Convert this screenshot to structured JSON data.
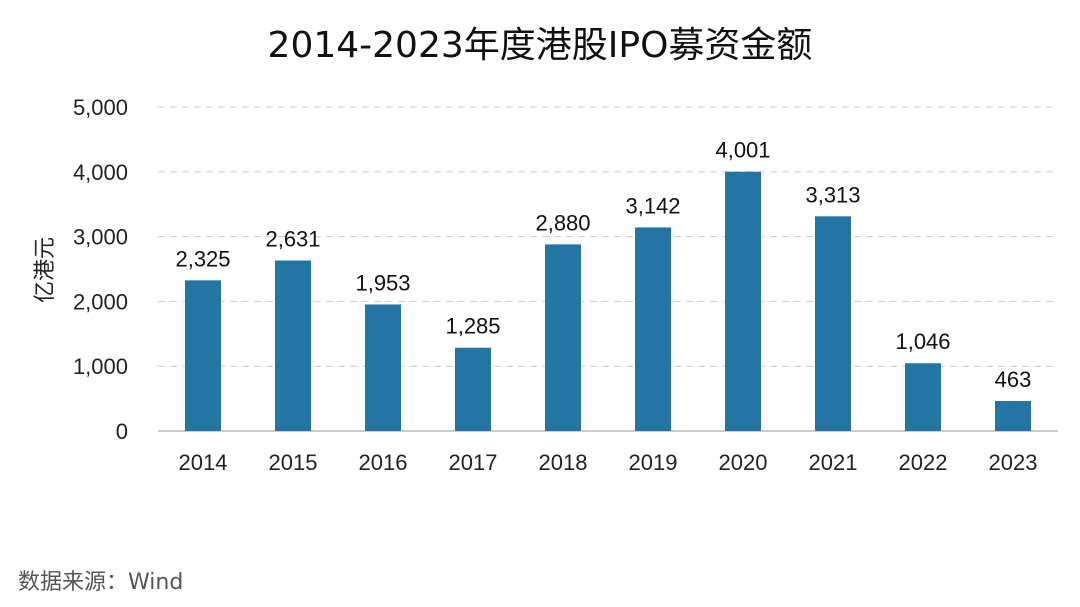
{
  "colors": {
    "bar": "#2474A4",
    "grid": "#CCCCCC",
    "axis": "#BBBBBB"
  },
  "source": "数据来源：Wind",
  "chart_data": {
    "type": "bar",
    "title": "2014-2023年度港股IPO募资金额",
    "ylabel": "亿港元",
    "xlabel": "",
    "categories": [
      "2014",
      "2015",
      "2016",
      "2017",
      "2018",
      "2019",
      "2020",
      "2021",
      "2022",
      "2023"
    ],
    "values": [
      2325,
      2631,
      1953,
      1285,
      2880,
      3142,
      4001,
      3313,
      1046,
      463
    ],
    "data_labels": [
      "2,325",
      "2,631",
      "1,953",
      "1,285",
      "2,880",
      "3,142",
      "4,001",
      "3,313",
      "1,046",
      "463"
    ],
    "ylim": [
      0,
      5000
    ],
    "yticks": [
      0,
      1000,
      2000,
      3000,
      4000,
      5000
    ],
    "ytick_labels": [
      "0",
      "1,000",
      "2,000",
      "3,000",
      "4,000",
      "5,000"
    ],
    "grid": true,
    "legend": "none"
  }
}
